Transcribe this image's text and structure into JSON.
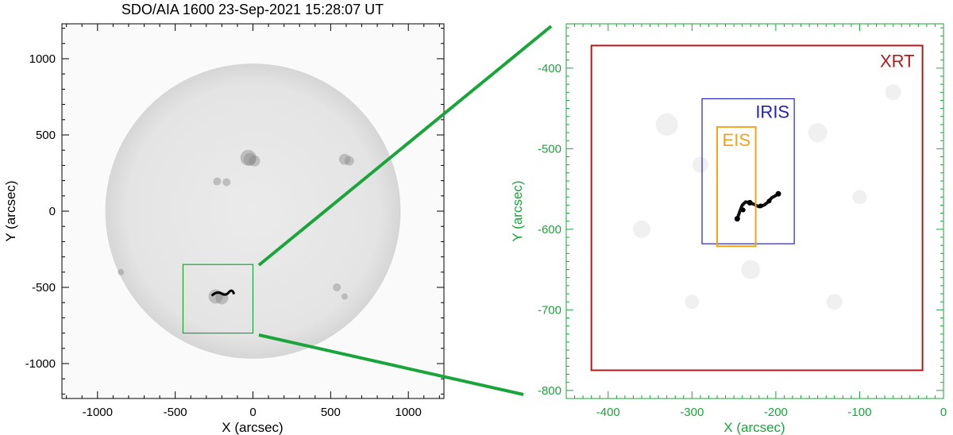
{
  "left_panel": {
    "title": "SDO/AIA 1600 23-Sep-2021 15:28:07 UT",
    "xlabel": "X (arcsec)",
    "ylabel": "Y (arcsec)",
    "xlim": [
      -1229,
      1229
    ],
    "ylim": [
      -1229,
      1229
    ],
    "xticks": [
      -1000,
      -500,
      0,
      500,
      1000
    ],
    "yticks": [
      -1000,
      -500,
      0,
      500,
      1000
    ],
    "xtick_labels": [
      "-1000",
      "-500",
      "0",
      "500",
      "1000"
    ],
    "ytick_labels": [
      "-1000",
      "-500",
      "0",
      "500",
      "1000"
    ],
    "axis_color": "#000000",
    "solar_radius": 950,
    "disk_color": "#e8e8e8",
    "zoom_box": {
      "x": [
        -450,
        0
      ],
      "y": [
        -800,
        -350
      ],
      "color": "#1aa53a"
    }
  },
  "right_panel": {
    "xlabel": "X (arcsec)",
    "ylabel": "Y (arcsec)",
    "xlim": [
      -450,
      0
    ],
    "ylim": [
      -810,
      -345
    ],
    "xticks": [
      -400,
      -300,
      -200,
      -100,
      0
    ],
    "yticks": [
      -800,
      -700,
      -600,
      -500,
      -400
    ],
    "xtick_labels": [
      "-400",
      "-300",
      "-200",
      "-100",
      "0"
    ],
    "ytick_labels": [
      "-800",
      "-700",
      "-600",
      "-500",
      "-400"
    ],
    "axis_color": "#1aa53a",
    "boxes": [
      {
        "name": "XRT",
        "x": [
          -420,
          -25
        ],
        "y": [
          -775,
          -372
        ],
        "color": "#b11a1a"
      },
      {
        "name": "IRIS",
        "x": [
          -288,
          -178
        ],
        "y": [
          -618,
          -438
        ],
        "color": "#2222bb"
      },
      {
        "name": "EIS",
        "x": [
          -270,
          -224
        ],
        "y": [
          -621,
          -473
        ],
        "color": "#f5a31a"
      }
    ]
  },
  "connector_color": "#1aa53a"
}
